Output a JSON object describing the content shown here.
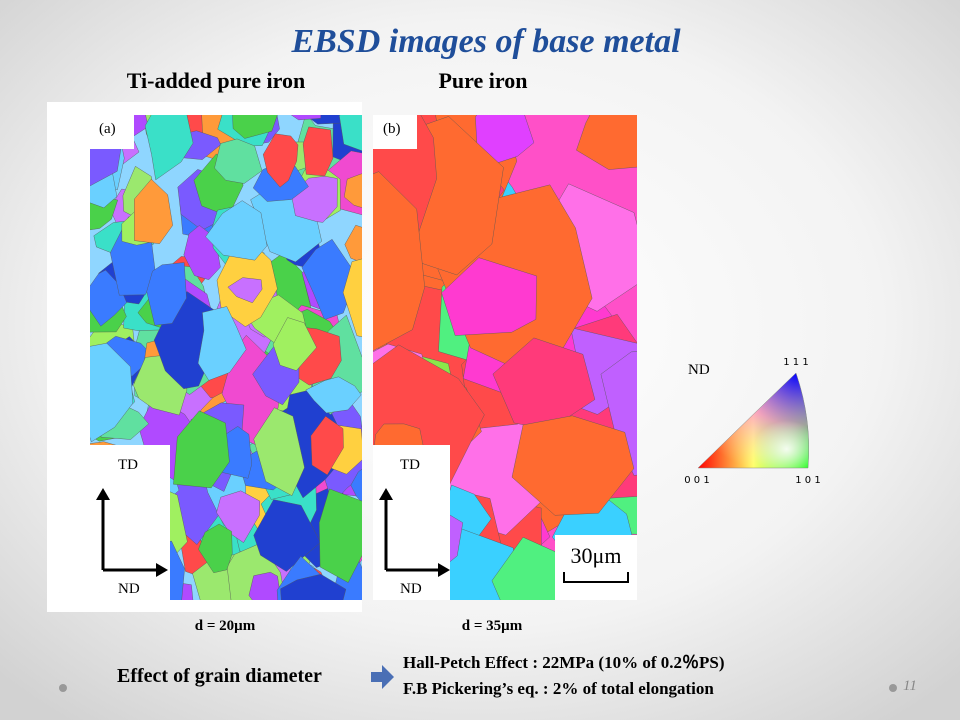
{
  "title": "EBSD images of base metal",
  "panels": [
    {
      "heading": "Ti-added pure iron",
      "label": "(a)",
      "axis_top": "TD",
      "axis_right": "ND",
      "caption": "d = 20μm"
    },
    {
      "heading": "Pure iron",
      "label": "(b)",
      "axis_top": "TD",
      "axis_right": "ND",
      "caption": "d = 35μm",
      "scale_bar": "30μm"
    }
  ],
  "legend": {
    "axis": "ND",
    "corners": [
      "1 1 1",
      "0 0 1",
      "1 0 1"
    ]
  },
  "effect": {
    "label": "Effect of grain diameter",
    "lines": [
      "Hall-Petch Effect : 22MPa (10% of 0.2％PS)",
      "F.B Pickering’s eq. : 2% of total elongation"
    ]
  },
  "page_number": "11"
}
